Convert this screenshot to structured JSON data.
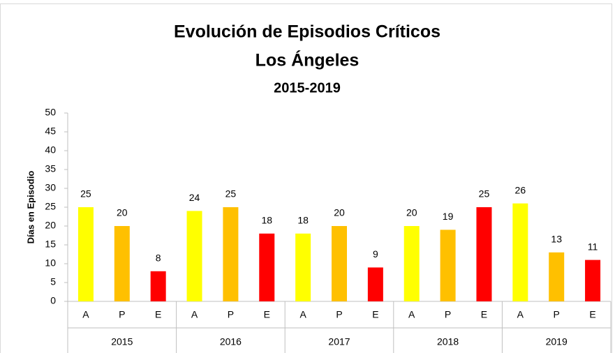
{
  "chart_data": {
    "type": "bar",
    "title": "Evolución de Episodios Críticos",
    "subtitle": "Los Ángeles",
    "period": "2015-2019",
    "y_label": "Días en Episodio",
    "categories": [
      "A",
      "P",
      "E",
      "A",
      "P",
      "E",
      "A",
      "P",
      "E",
      "A",
      "P",
      "E",
      "A",
      "P",
      "E"
    ],
    "groups": [
      "2015",
      "2016",
      "2017",
      "2018",
      "2019"
    ],
    "values": [
      25,
      20,
      8,
      24,
      25,
      18,
      18,
      20,
      9,
      20,
      19,
      25,
      26,
      13,
      11
    ],
    "colors": [
      "#ffff00",
      "#ffc000",
      "#ff0000"
    ],
    "ylim": [
      0,
      50
    ],
    "yticks": [
      0,
      5,
      10,
      15,
      20,
      25,
      30,
      35,
      40,
      45,
      50
    ],
    "grid": false,
    "data_labels": true
  }
}
